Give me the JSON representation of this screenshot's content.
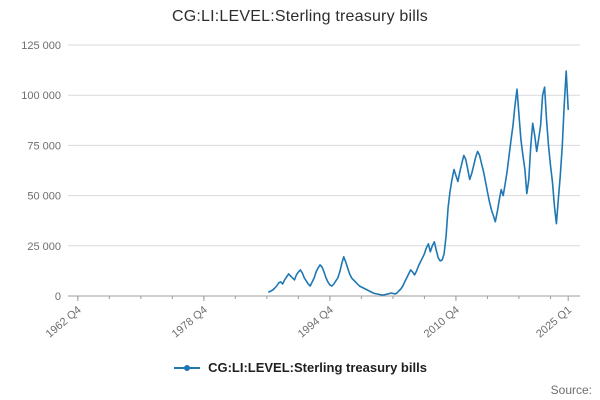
{
  "title": "CG:LI:LEVEL:Sterling treasury bills",
  "legend": {
    "label": "CG:LI:LEVEL:Sterling treasury bills"
  },
  "source_label": "Source:",
  "colors": {
    "line": "#1f77b4",
    "grid": "#d9d9d9",
    "axis": "#9e9e9e",
    "tick_text": "#6e6e6e",
    "title_text": "#2e2e2e"
  },
  "chart_data": {
    "type": "line",
    "title": "CG:LI:LEVEL:Sterling treasury bills",
    "xlabel": "",
    "ylabel": "",
    "grid": true,
    "legend_position": "bottom",
    "x_domain": [
      1961.5,
      2026.5
    ],
    "ylim": [
      0,
      125000
    ],
    "yticks": [
      {
        "v": 0,
        "label": "0"
      },
      {
        "v": 25000,
        "label": "25 000"
      },
      {
        "v": 50000,
        "label": "50 000"
      },
      {
        "v": 75000,
        "label": "75 000"
      },
      {
        "v": 100000,
        "label": "100 000"
      },
      {
        "v": 125000,
        "label": "125 000"
      }
    ],
    "xticks": [
      {
        "t": 1962.75,
        "label": "1962 Q4"
      },
      {
        "t": 1978.75,
        "label": "1978 Q4"
      },
      {
        "t": 1994.75,
        "label": "1994 Q4"
      },
      {
        "t": 2010.75,
        "label": "2010 Q4"
      },
      {
        "t": 2025.0,
        "label": "2025 Q1"
      }
    ],
    "minor_tick_years": 4,
    "series": [
      {
        "name": "CG:LI:LEVEL:Sterling treasury bills",
        "start": 1987.0,
        "interval_years": 0.25,
        "values": [
          2000,
          2500,
          3000,
          4000,
          5000,
          6500,
          7000,
          6000,
          8000,
          9500,
          11000,
          10000,
          9000,
          8000,
          10500,
          12000,
          13000,
          11500,
          9000,
          7500,
          6000,
          5000,
          7000,
          9000,
          12000,
          14000,
          15500,
          14500,
          12000,
          9000,
          7000,
          5500,
          5000,
          6000,
          7500,
          9000,
          12000,
          16000,
          19500,
          17000,
          14000,
          11000,
          9000,
          8000,
          7000,
          6000,
          5000,
          4500,
          4000,
          3500,
          3000,
          2500,
          2000,
          1500,
          1200,
          1000,
          800,
          600,
          500,
          700,
          900,
          1200,
          1500,
          1300,
          1000,
          1500,
          2500,
          3500,
          5000,
          7000,
          9000,
          11000,
          13000,
          12000,
          10500,
          12500,
          15000,
          17000,
          19000,
          21000,
          24000,
          26000,
          22000,
          25000,
          27000,
          23000,
          19000,
          17500,
          18000,
          21000,
          30000,
          44000,
          52000,
          58000,
          63000,
          60000,
          57000,
          62000,
          66000,
          70000,
          68000,
          63000,
          58000,
          61000,
          65000,
          69000,
          72000,
          70000,
          66000,
          62000,
          57000,
          52000,
          47000,
          43000,
          40000,
          37000,
          42000,
          48000,
          53000,
          50000,
          56000,
          62000,
          70000,
          78000,
          85000,
          95000,
          103000,
          90000,
          78000,
          70000,
          63000,
          51000,
          58000,
          75000,
          86000,
          80000,
          72000,
          78000,
          85000,
          100000,
          104000,
          88000,
          75000,
          65000,
          57000,
          45000,
          36000,
          48000,
          60000,
          75000,
          95000,
          112000,
          93000
        ]
      }
    ]
  }
}
